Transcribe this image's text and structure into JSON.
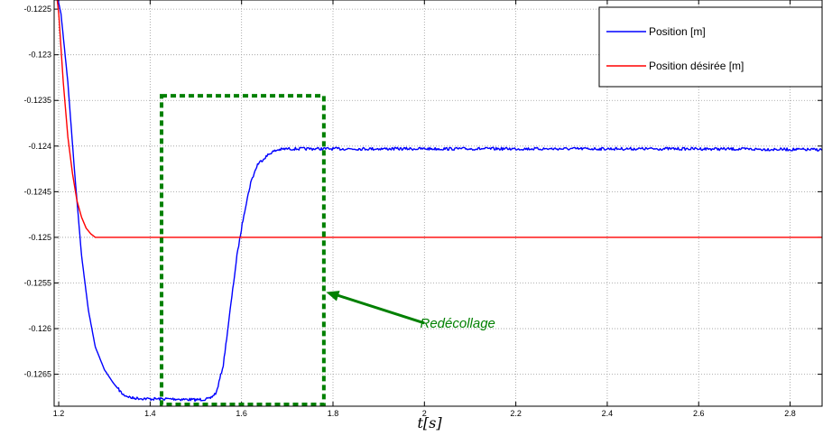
{
  "chart_data": {
    "type": "line",
    "title": "",
    "xlabel": "t[s]",
    "ylabel": "",
    "xlim": [
      1.19,
      2.87
    ],
    "ylim": [
      -0.12685,
      -0.1224
    ],
    "x_ticks": [
      1.2,
      1.4,
      1.6,
      1.8,
      2,
      2.2,
      2.4,
      2.6,
      2.8
    ],
    "x_tick_labels": [
      "1.2",
      "1.4",
      "1.6",
      "1.8",
      "2",
      "2.2",
      "2.4",
      "2.6",
      "2.8"
    ],
    "y_ticks": [
      -0.1225,
      -0.123,
      -0.1235,
      -0.124,
      -0.1245,
      -0.125,
      -0.1255,
      -0.126,
      -0.1265
    ],
    "y_tick_labels": [
      "-0.1225",
      "-0.123",
      "-0.1235",
      "-0.124",
      "-0.1245",
      "-0.125",
      "-0.1255",
      "-0.126",
      "-0.1265"
    ],
    "grid": true,
    "legend_position": "top-right",
    "series": [
      {
        "name": "Position [m]",
        "color": "#0000ff",
        "points": [
          [
            1.19,
            -0.1222
          ],
          [
            1.205,
            -0.12255
          ],
          [
            1.22,
            -0.1233
          ],
          [
            1.235,
            -0.1243
          ],
          [
            1.25,
            -0.1252
          ],
          [
            1.265,
            -0.1258
          ],
          [
            1.28,
            -0.1262
          ],
          [
            1.3,
            -0.12645
          ],
          [
            1.32,
            -0.1266
          ],
          [
            1.34,
            -0.12672
          ],
          [
            1.36,
            -0.12676
          ],
          [
            1.4,
            -0.12677
          ],
          [
            1.45,
            -0.12677
          ],
          [
            1.5,
            -0.12678
          ],
          [
            1.53,
            -0.12677
          ],
          [
            1.545,
            -0.1267
          ],
          [
            1.56,
            -0.1264
          ],
          [
            1.575,
            -0.1258
          ],
          [
            1.59,
            -0.1252
          ],
          [
            1.605,
            -0.12475
          ],
          [
            1.62,
            -0.1244
          ],
          [
            1.635,
            -0.1242
          ],
          [
            1.65,
            -0.12413
          ],
          [
            1.665,
            -0.12407
          ],
          [
            1.68,
            -0.12404
          ],
          [
            1.7,
            -0.12403
          ],
          [
            1.8,
            -0.12403
          ],
          [
            2.0,
            -0.12403
          ],
          [
            2.2,
            -0.12403
          ],
          [
            2.4,
            -0.12403
          ],
          [
            2.6,
            -0.12403
          ],
          [
            2.87,
            -0.12404
          ]
        ]
      },
      {
        "name": "Position désirée [m]",
        "color": "#ff0000",
        "points": [
          [
            1.19,
            -0.1221
          ],
          [
            1.2,
            -0.12255
          ],
          [
            1.21,
            -0.1233
          ],
          [
            1.22,
            -0.1239
          ],
          [
            1.23,
            -0.1243
          ],
          [
            1.24,
            -0.1246
          ],
          [
            1.25,
            -0.12478
          ],
          [
            1.26,
            -0.1249
          ],
          [
            1.27,
            -0.12496
          ],
          [
            1.28,
            -0.125
          ],
          [
            2.0,
            -0.125
          ],
          [
            2.87,
            -0.125
          ]
        ]
      }
    ],
    "annotations": [
      {
        "text": "Redécollage",
        "color": "#008000",
        "box": {
          "x": [
            1.425,
            1.78
          ],
          "y": [
            -0.12683,
            -0.12345
          ]
        },
        "arrow_to": [
          1.785,
          -0.1256
        ],
        "arrow_from": [
          2.0,
          -0.12594
        ],
        "text_at": [
          2.03,
          -0.12594
        ]
      }
    ]
  }
}
